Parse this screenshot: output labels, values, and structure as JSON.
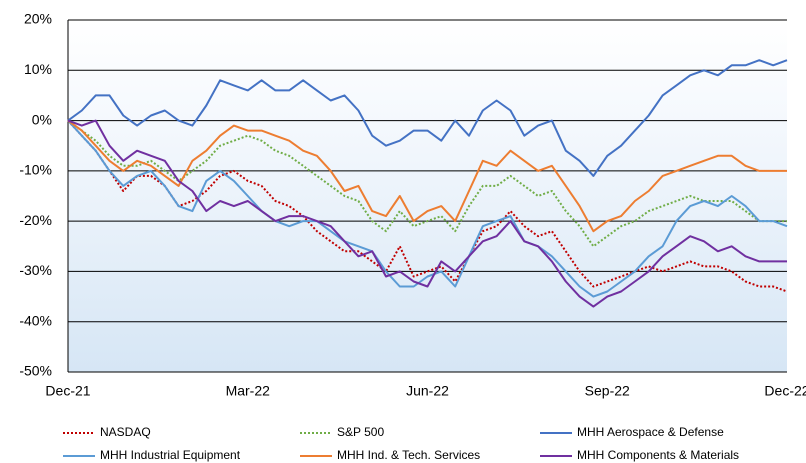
{
  "chart_data": {
    "type": "line",
    "categories": [
      "Dec-21",
      null,
      null,
      null,
      null,
      null,
      null,
      null,
      null,
      null,
      null,
      null,
      null,
      "Mar-22",
      null,
      null,
      null,
      null,
      null,
      null,
      null,
      null,
      null,
      null,
      null,
      null,
      "Jun-22",
      null,
      null,
      null,
      null,
      null,
      null,
      null,
      null,
      null,
      null,
      null,
      null,
      "Sep-22",
      null,
      null,
      null,
      null,
      null,
      null,
      null,
      null,
      null,
      null,
      null,
      null,
      "Dec-22"
    ],
    "ylim": [
      -50,
      20
    ],
    "yticks": [
      {
        "value": -50,
        "label": "-50%"
      },
      {
        "value": -40,
        "label": "-40%"
      },
      {
        "value": -30,
        "label": "-30%"
      },
      {
        "value": -20,
        "label": "-20%"
      },
      {
        "value": -10,
        "label": "-10%"
      },
      {
        "value": 0,
        "label": "0%"
      },
      {
        "value": 10,
        "label": "10%"
      },
      {
        "value": 20,
        "label": "20%"
      }
    ],
    "grid": true,
    "legend": "bottom",
    "series": [
      {
        "name": "NASDAQ",
        "color": "#c00000",
        "linestyle": "dotted",
        "values": [
          0,
          -3,
          -6,
          -10,
          -14,
          -11,
          -11,
          -13,
          -17,
          -16,
          -14,
          -11,
          -10,
          -12,
          -13,
          -16,
          -17,
          -19,
          -22,
          -24,
          -26,
          -26,
          -28,
          -30,
          -25,
          -31,
          -30,
          -29,
          -32,
          -27,
          -22,
          -21,
          -18,
          -21,
          -23,
          -22,
          -26,
          -30,
          -33,
          -32,
          -31,
          -30,
          -29,
          -30,
          -29,
          -28,
          -29,
          -29,
          -30,
          -32,
          -33,
          -33,
          -34
        ]
      },
      {
        "name": "S&P 500",
        "color": "#70ad47",
        "linestyle": "dotted",
        "values": [
          0,
          -2,
          -4,
          -7,
          -9,
          -9,
          -8,
          -10,
          -12,
          -10,
          -8,
          -5,
          -4,
          -3,
          -4,
          -6,
          -7,
          -9,
          -11,
          -13,
          -15,
          -16,
          -20,
          -22,
          -18,
          -21,
          -20,
          -19,
          -22,
          -17,
          -13,
          -13,
          -11,
          -13,
          -15,
          -14,
          -18,
          -21,
          -25,
          -23,
          -21,
          -20,
          -18,
          -17,
          -16,
          -15,
          -16,
          -16,
          -16,
          -18,
          -20,
          -20,
          -20
        ]
      },
      {
        "name": "MHH Aerospace & Defense",
        "color": "#4472c4",
        "linestyle": "solid",
        "values": [
          0,
          2,
          5,
          5,
          1,
          -1,
          1,
          2,
          0,
          -1,
          3,
          8,
          7,
          6,
          8,
          6,
          6,
          8,
          6,
          4,
          5,
          2,
          -3,
          -5,
          -4,
          -2,
          -2,
          -4,
          0,
          -3,
          2,
          4,
          2,
          -3,
          -1,
          0,
          -6,
          -8,
          -11,
          -7,
          -5,
          -2,
          1,
          5,
          7,
          9,
          10,
          9,
          11,
          11,
          12,
          11,
          12
        ]
      },
      {
        "name": "MHH Industrial Equipment",
        "color": "#5b9bd5",
        "linestyle": "solid",
        "values": [
          0,
          -3,
          -6,
          -10,
          -13,
          -11,
          -10,
          -13,
          -17,
          -18,
          -12,
          -10,
          -12,
          -15,
          -18,
          -20,
          -21,
          -20,
          -20,
          -22,
          -24,
          -25,
          -26,
          -30,
          -33,
          -33,
          -31,
          -30,
          -33,
          -27,
          -21,
          -20,
          -19,
          -24,
          -25,
          -27,
          -30,
          -33,
          -35,
          -34,
          -32,
          -30,
          -27,
          -25,
          -20,
          -17,
          -16,
          -17,
          -15,
          -17,
          -20,
          -20,
          -21
        ]
      },
      {
        "name": "MHH Ind. & Tech. Services",
        "color": "#ed7d31",
        "linestyle": "solid",
        "values": [
          0,
          -2,
          -5,
          -8,
          -10,
          -8,
          -9,
          -11,
          -13,
          -8,
          -6,
          -3,
          -1,
          -2,
          -2,
          -3,
          -4,
          -6,
          -7,
          -10,
          -14,
          -13,
          -18,
          -19,
          -15,
          -20,
          -18,
          -17,
          -20,
          -14,
          -8,
          -9,
          -6,
          -8,
          -10,
          -9,
          -13,
          -17,
          -22,
          -20,
          -19,
          -16,
          -14,
          -11,
          -10,
          -9,
          -8,
          -7,
          -7,
          -9,
          -10,
          -10,
          -10
        ]
      },
      {
        "name": "MHH Components & Materials",
        "color": "#7030a0",
        "linestyle": "solid",
        "values": [
          0,
          -1,
          0,
          -5,
          -8,
          -6,
          -7,
          -8,
          -12,
          -14,
          -18,
          -16,
          -17,
          -16,
          -18,
          -20,
          -19,
          -19,
          -20,
          -21,
          -24,
          -27,
          -26,
          -31,
          -30,
          -32,
          -33,
          -28,
          -30,
          -27,
          -24,
          -23,
          -20,
          -24,
          -25,
          -28,
          -32,
          -35,
          -37,
          -35,
          -34,
          -32,
          -30,
          -27,
          -25,
          -23,
          -24,
          -26,
          -25,
          -27,
          -28,
          -28,
          -28
        ]
      }
    ]
  }
}
